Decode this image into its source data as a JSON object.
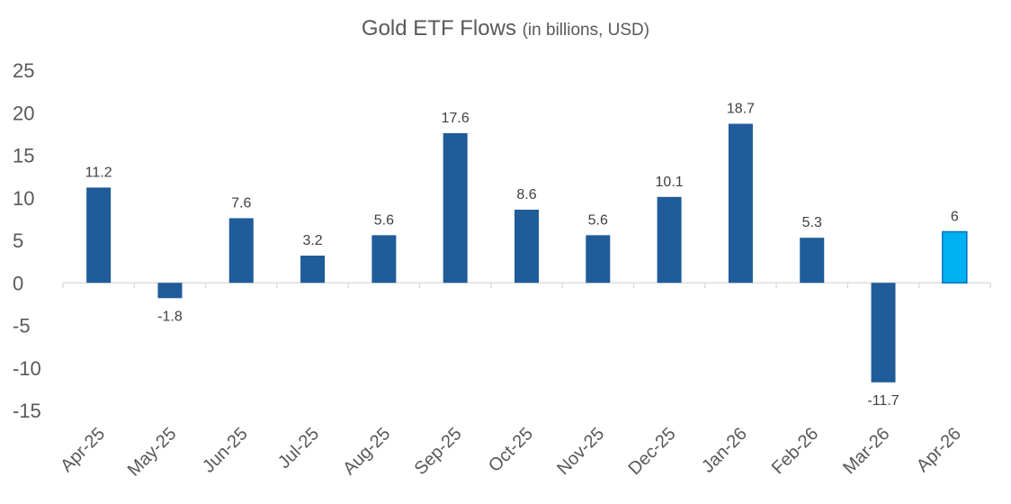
{
  "chart_data": {
    "type": "bar",
    "title": "Gold ETF Flows",
    "subtitle": "(in billions, USD)",
    "xlabel": "",
    "ylabel": "",
    "categories": [
      "Apr-25",
      "May-25",
      "Jun-25",
      "Jul-25",
      "Aug-25",
      "Sep-25",
      "Oct-25",
      "Nov-25",
      "Dec-25",
      "Jan-26",
      "Feb-26",
      "Mar-26",
      "Apr-26"
    ],
    "values": [
      11.2,
      -1.8,
      7.6,
      3.2,
      5.6,
      17.6,
      8.6,
      5.6,
      10.1,
      18.7,
      5.3,
      -11.7,
      6
    ],
    "data_labels": [
      "11.2",
      "-1.8",
      "7.6",
      "3.2",
      "5.6",
      "17.6",
      "8.6",
      "5.6",
      "10.1",
      "18.7",
      "5.3",
      "-11.7",
      "6"
    ],
    "highlight_index": 12,
    "ylim": [
      -15,
      25
    ],
    "yticks": [
      25,
      20,
      15,
      10,
      5,
      0,
      -5,
      -10,
      -15
    ],
    "grid": false,
    "legend": "none",
    "colors": {
      "bar": "#1f5c99",
      "highlight": "#00b0f0",
      "highlight_border": "#0070c0",
      "axis": "#d9d9d9",
      "text": "#595959",
      "label": "#404040"
    }
  }
}
